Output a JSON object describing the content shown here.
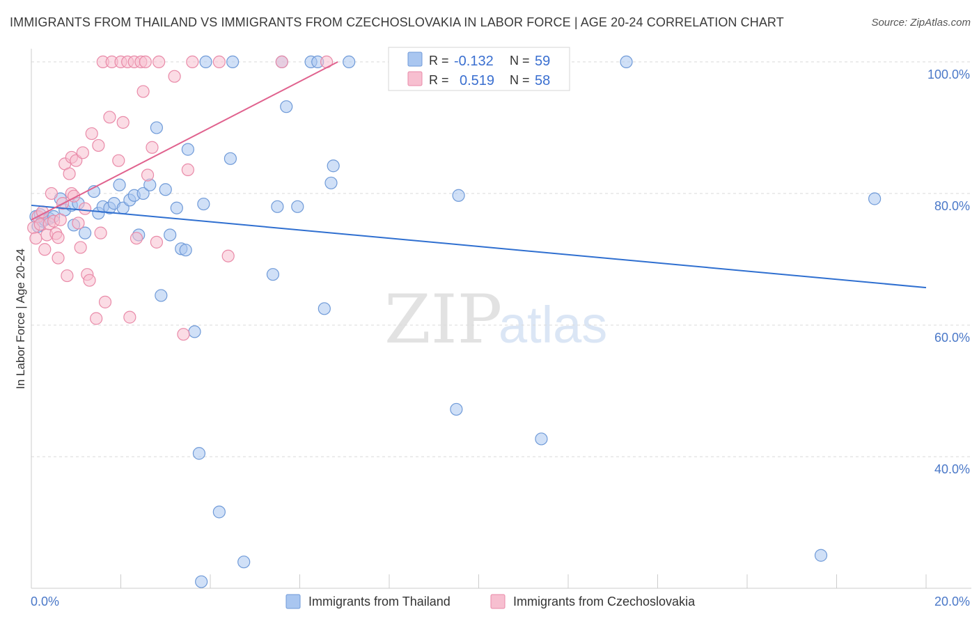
{
  "header": {
    "title": "IMMIGRANTS FROM THAILAND VS IMMIGRANTS FROM CZECHOSLOVAKIA IN LABOR FORCE | AGE 20-24 CORRELATION CHART",
    "source": "Source: ZipAtlas.com"
  },
  "watermark": {
    "zip": "ZIP",
    "atlas": "atlas"
  },
  "colors": {
    "blue_fill": "#a9c6f0",
    "blue_stroke": "#6f9ad8",
    "blue_line": "#2f6fd0",
    "pink_fill": "#f7bfd0",
    "pink_stroke": "#e98aa8",
    "pink_line": "#e0628e",
    "grid": "#d9d9d9",
    "tick_text": "#4a78c8"
  },
  "chart_data": {
    "type": "scatter",
    "title": "IMMIGRANTS FROM THAILAND VS IMMIGRANTS FROM CZECHOSLOVAKIA IN LABOR FORCE | AGE 20-24 CORRELATION CHART",
    "xlabel": "",
    "ylabel": "In Labor Force | Age 20-24",
    "xlim": [
      0,
      20
    ],
    "ylim": [
      20,
      102
    ],
    "x_tick_labels": [
      {
        "value": 0,
        "label": "0.0%"
      },
      {
        "value": 20,
        "label": "20.0%"
      }
    ],
    "y_tick_labels": [
      {
        "value": 100,
        "label": "100.0%"
      },
      {
        "value": 80,
        "label": "80.0%"
      },
      {
        "value": 60,
        "label": "60.0%"
      },
      {
        "value": 40,
        "label": "40.0%"
      }
    ],
    "y_gridlines": [
      100,
      80,
      60,
      40
    ],
    "legend": {
      "placement": "top-center",
      "entries": [
        {
          "r_label": "R =",
          "r_value": "-0.132",
          "n_label": "N =",
          "n_value": "59"
        },
        {
          "r_label": "R =",
          "r_value": "0.519",
          "n_label": "N =",
          "n_value": "58"
        }
      ]
    },
    "bottom_legend": [
      "Immigrants from Thailand",
      "Immigrants from Czechoslovakia"
    ],
    "series": [
      {
        "name": "Immigrants from Thailand",
        "color": "#a9c6f0",
        "r": -0.132,
        "n": 59,
        "trend": {
          "x": [
            0,
            20
          ],
          "y": [
            78.2,
            65.7
          ]
        },
        "points": [
          [
            0.1,
            76.5
          ],
          [
            0.15,
            75.0
          ],
          [
            0.2,
            76.8
          ],
          [
            0.25,
            75.8
          ],
          [
            0.3,
            76.0
          ],
          [
            0.4,
            76.2
          ],
          [
            0.5,
            76.5
          ],
          [
            0.65,
            79.2
          ],
          [
            0.75,
            77.5
          ],
          [
            0.9,
            78.2
          ],
          [
            0.95,
            75.2
          ],
          [
            1.05,
            78.5
          ],
          [
            1.2,
            74.0
          ],
          [
            1.4,
            80.3
          ],
          [
            1.5,
            77.0
          ],
          [
            1.6,
            78.0
          ],
          [
            1.75,
            77.8
          ],
          [
            1.85,
            78.5
          ],
          [
            1.97,
            81.3
          ],
          [
            2.05,
            77.8
          ],
          [
            2.2,
            79.0
          ],
          [
            2.3,
            79.7
          ],
          [
            2.4,
            73.7
          ],
          [
            2.5,
            80.0
          ],
          [
            2.65,
            81.3
          ],
          [
            2.8,
            90.0
          ],
          [
            2.9,
            64.5
          ],
          [
            3.0,
            80.6
          ],
          [
            3.1,
            73.7
          ],
          [
            3.25,
            77.8
          ],
          [
            3.35,
            71.6
          ],
          [
            3.45,
            71.4
          ],
          [
            3.5,
            86.7
          ],
          [
            3.65,
            59.0
          ],
          [
            3.75,
            40.5
          ],
          [
            3.85,
            78.4
          ],
          [
            3.9,
            100.0
          ],
          [
            4.2,
            31.6
          ],
          [
            4.5,
            100.0
          ],
          [
            4.45,
            85.3
          ],
          [
            4.75,
            24.0
          ],
          [
            5.4,
            67.7
          ],
          [
            5.5,
            78.0
          ],
          [
            5.6,
            100.0
          ],
          [
            5.7,
            93.2
          ],
          [
            5.95,
            78.0
          ],
          [
            6.25,
            100.0
          ],
          [
            6.4,
            100.0
          ],
          [
            6.55,
            62.5
          ],
          [
            6.7,
            81.6
          ],
          [
            6.75,
            84.2
          ],
          [
            7.1,
            100.0
          ],
          [
            9.5,
            47.2
          ],
          [
            9.55,
            79.7
          ],
          [
            11.4,
            42.7
          ],
          [
            13.3,
            100.0
          ],
          [
            17.65,
            25.0
          ],
          [
            18.85,
            79.2
          ],
          [
            3.8,
            21.0
          ]
        ]
      },
      {
        "name": "Immigrants from Czechoslovakia",
        "color": "#f7bfd0",
        "r": 0.519,
        "n": 58,
        "trend": {
          "x": [
            0,
            6.85
          ],
          "y": [
            76.0,
            100.0
          ]
        },
        "points": [
          [
            0.05,
            74.8
          ],
          [
            0.1,
            73.2
          ],
          [
            0.15,
            76.5
          ],
          [
            0.2,
            75.3
          ],
          [
            0.25,
            77.2
          ],
          [
            0.3,
            71.5
          ],
          [
            0.35,
            73.7
          ],
          [
            0.4,
            75.4
          ],
          [
            0.45,
            80.0
          ],
          [
            0.5,
            75.8
          ],
          [
            0.55,
            73.9
          ],
          [
            0.6,
            73.3
          ],
          [
            0.6,
            70.2
          ],
          [
            0.65,
            76.0
          ],
          [
            0.7,
            78.5
          ],
          [
            0.75,
            84.5
          ],
          [
            0.8,
            67.5
          ],
          [
            0.85,
            83.0
          ],
          [
            0.9,
            85.5
          ],
          [
            0.9,
            80.0
          ],
          [
            0.95,
            79.6
          ],
          [
            1.0,
            85.0
          ],
          [
            1.05,
            75.5
          ],
          [
            1.1,
            71.8
          ],
          [
            1.15,
            86.2
          ],
          [
            1.2,
            77.7
          ],
          [
            1.25,
            67.7
          ],
          [
            1.3,
            66.8
          ],
          [
            1.35,
            89.1
          ],
          [
            1.45,
            61.0
          ],
          [
            1.5,
            87.3
          ],
          [
            1.55,
            74.0
          ],
          [
            1.6,
            100.0
          ],
          [
            1.65,
            63.5
          ],
          [
            1.75,
            91.6
          ],
          [
            1.8,
            100.0
          ],
          [
            1.95,
            85.0
          ],
          [
            2.0,
            100.0
          ],
          [
            2.05,
            90.8
          ],
          [
            2.15,
            100.0
          ],
          [
            2.2,
            61.2
          ],
          [
            2.3,
            100.0
          ],
          [
            2.35,
            73.2
          ],
          [
            2.45,
            100.0
          ],
          [
            2.5,
            95.5
          ],
          [
            2.55,
            100.0
          ],
          [
            2.6,
            82.8
          ],
          [
            2.7,
            87.0
          ],
          [
            2.8,
            72.6
          ],
          [
            2.85,
            100.0
          ],
          [
            3.2,
            97.8
          ],
          [
            3.4,
            58.6
          ],
          [
            3.5,
            83.6
          ],
          [
            3.6,
            100.0
          ],
          [
            4.2,
            100.0
          ],
          [
            4.4,
            70.5
          ],
          [
            5.6,
            100.0
          ],
          [
            6.6,
            100.0
          ]
        ]
      }
    ]
  }
}
